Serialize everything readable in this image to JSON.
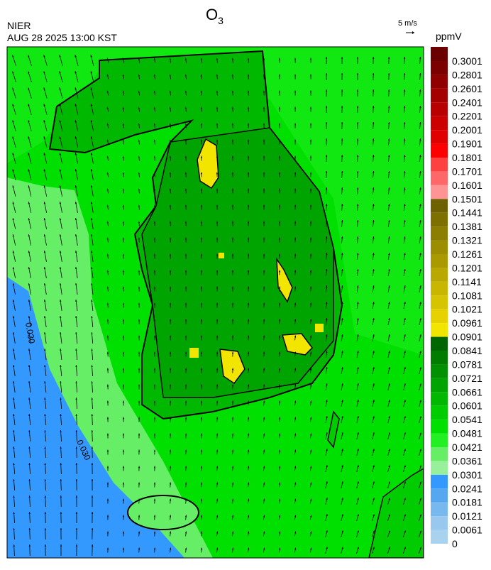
{
  "header": {
    "agency": "NIER",
    "timestamp": "AUG 28 2025 13:00 KST",
    "title": {
      "base": "O",
      "subscript": "3"
    }
  },
  "wind_scale": {
    "label": "5 m/s"
  },
  "colorbar": {
    "unit": "ppmV",
    "labels": [
      "0.3001",
      "0.2801",
      "0.2601",
      "0.2401",
      "0.2201",
      "0.2001",
      "0.1901",
      "0.1801",
      "0.1701",
      "0.1601",
      "0.1501",
      "0.1441",
      "0.1381",
      "0.1321",
      "0.1261",
      "0.1201",
      "0.1141",
      "0.1081",
      "0.1021",
      "0.0961",
      "0.0901",
      "0.0841",
      "0.0781",
      "0.0721",
      "0.0661",
      "0.0601",
      "0.0541",
      "0.0481",
      "0.0421",
      "0.0361",
      "0.0301",
      "0.0241",
      "0.0181",
      "0.0121",
      "0.0061",
      "0"
    ],
    "colors": [
      "#6a0000",
      "#7d0000",
      "#900000",
      "#a50000",
      "#b80000",
      "#cc0000",
      "#e00000",
      "#ff0000",
      "#ff4040",
      "#ff6868",
      "#ff9494",
      "#6e6200",
      "#7d7000",
      "#8c7e00",
      "#9b8c00",
      "#aa9a00",
      "#b9a800",
      "#c8b600",
      "#d7c400",
      "#e6d200",
      "#f2e600",
      "#006600",
      "#007c00",
      "#009000",
      "#00a400",
      "#00b800",
      "#00cc00",
      "#00e000",
      "#22f022",
      "#66ee66",
      "#99f09a",
      "#3399ff",
      "#55a8f0",
      "#77b8ee",
      "#99c8ee",
      "#a8d2ee"
    ]
  },
  "contour_labels": [
    "0.030",
    "0.030"
  ]
}
